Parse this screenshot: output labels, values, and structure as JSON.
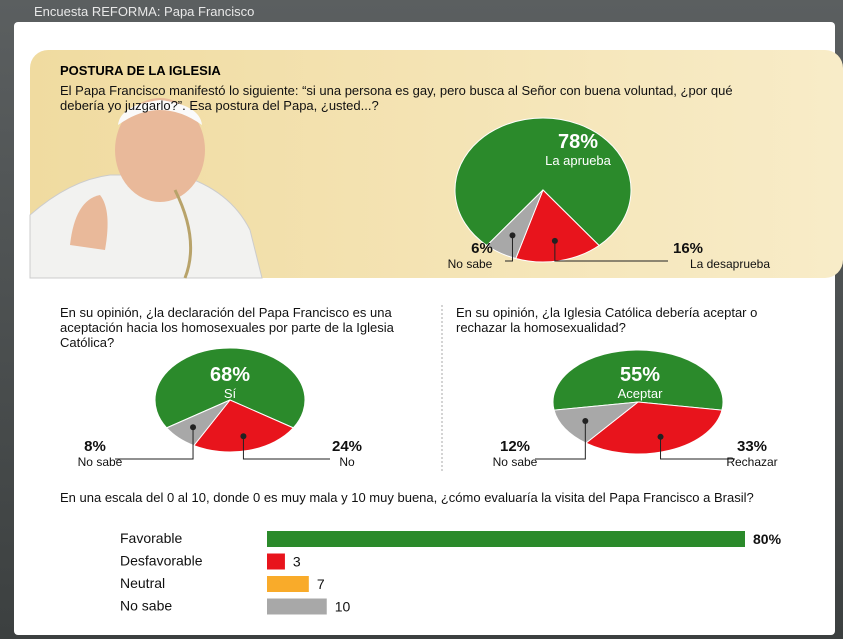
{
  "header": "Encuesta REFORMA: Papa Francisco",
  "chart_data": [
    {
      "type": "pie",
      "title": "POSTURA DE LA IGLESIA",
      "subtitle": "El Papa Francisco manifestó lo siguiente: “si una persona es gay, pero busca al Señor con buena voluntad, ¿por qué debería yo juzgarlo?”. Esa postura del Papa, ¿usted...?",
      "categories": [
        "La aprueba",
        "La desaprueba",
        "No sabe"
      ],
      "values": [
        78,
        16,
        6
      ],
      "value_labels": [
        "78%",
        "16%",
        "6%"
      ],
      "colors": [
        "#2b8a2b",
        "#e8141c",
        "#a8a8a8"
      ]
    },
    {
      "type": "pie",
      "title": "En su opinión, ¿la declaración del Papa Francisco es una aceptación hacia los homosexuales por parte de la Iglesia Católica?",
      "categories": [
        "Sí",
        "No",
        "No sabe"
      ],
      "values": [
        68,
        24,
        8
      ],
      "value_labels": [
        "68%",
        "24%",
        "8%"
      ],
      "colors": [
        "#2b8a2b",
        "#e8141c",
        "#a8a8a8"
      ]
    },
    {
      "type": "pie",
      "title": "En su opinión, ¿la Iglesia Católica debería aceptar o rechazar la homosexualidad?",
      "categories": [
        "Aceptar",
        "Rechazar",
        "No sabe"
      ],
      "values": [
        55,
        33,
        12
      ],
      "value_labels": [
        "55%",
        "33%",
        "12%"
      ],
      "colors": [
        "#2b8a2b",
        "#e8141c",
        "#a8a8a8"
      ]
    },
    {
      "type": "bar",
      "title": "En una escala del 0 al 10, donde 0 es muy mala y 10 muy buena, ¿cómo evaluaría la visita del Papa Francisco a Brasil?",
      "categories": [
        "Favorable",
        "Desfavorable",
        "Neutral",
        "No sabe"
      ],
      "values": [
        80,
        3,
        7,
        10
      ],
      "value_labels": [
        "80%",
        "3",
        "7",
        "10"
      ],
      "colors": [
        "#2b8a2b",
        "#e8141c",
        "#f9ab2a",
        "#a8a8a8"
      ]
    }
  ]
}
